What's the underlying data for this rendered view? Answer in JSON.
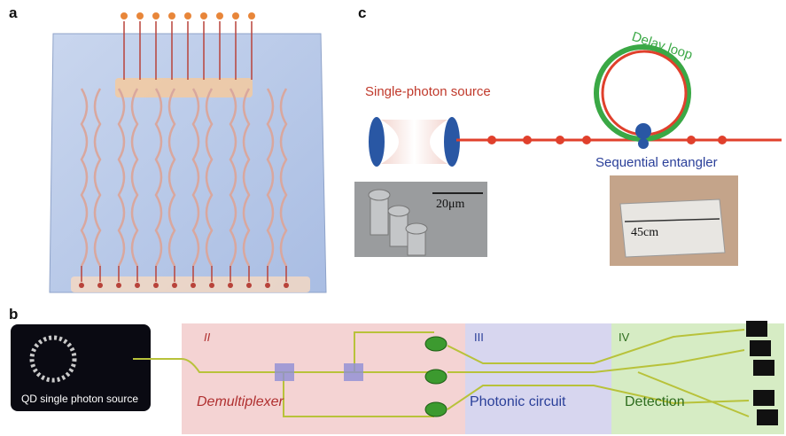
{
  "panels": {
    "a": {
      "label": "a"
    },
    "b": {
      "label": "b",
      "source_label": "QD single photon source",
      "stages": [
        {
          "numeral": "II",
          "label": "Demultiplexer"
        },
        {
          "numeral": "III",
          "label": "Photonic circuit"
        },
        {
          "numeral": "IV",
          "label": "Detection"
        }
      ]
    },
    "c": {
      "label": "c",
      "source": "Single-photon source",
      "delay": "Delay loop",
      "entangler": "Sequential entangler",
      "sem_scale": "20μm",
      "chip_scale": "45cm"
    }
  }
}
